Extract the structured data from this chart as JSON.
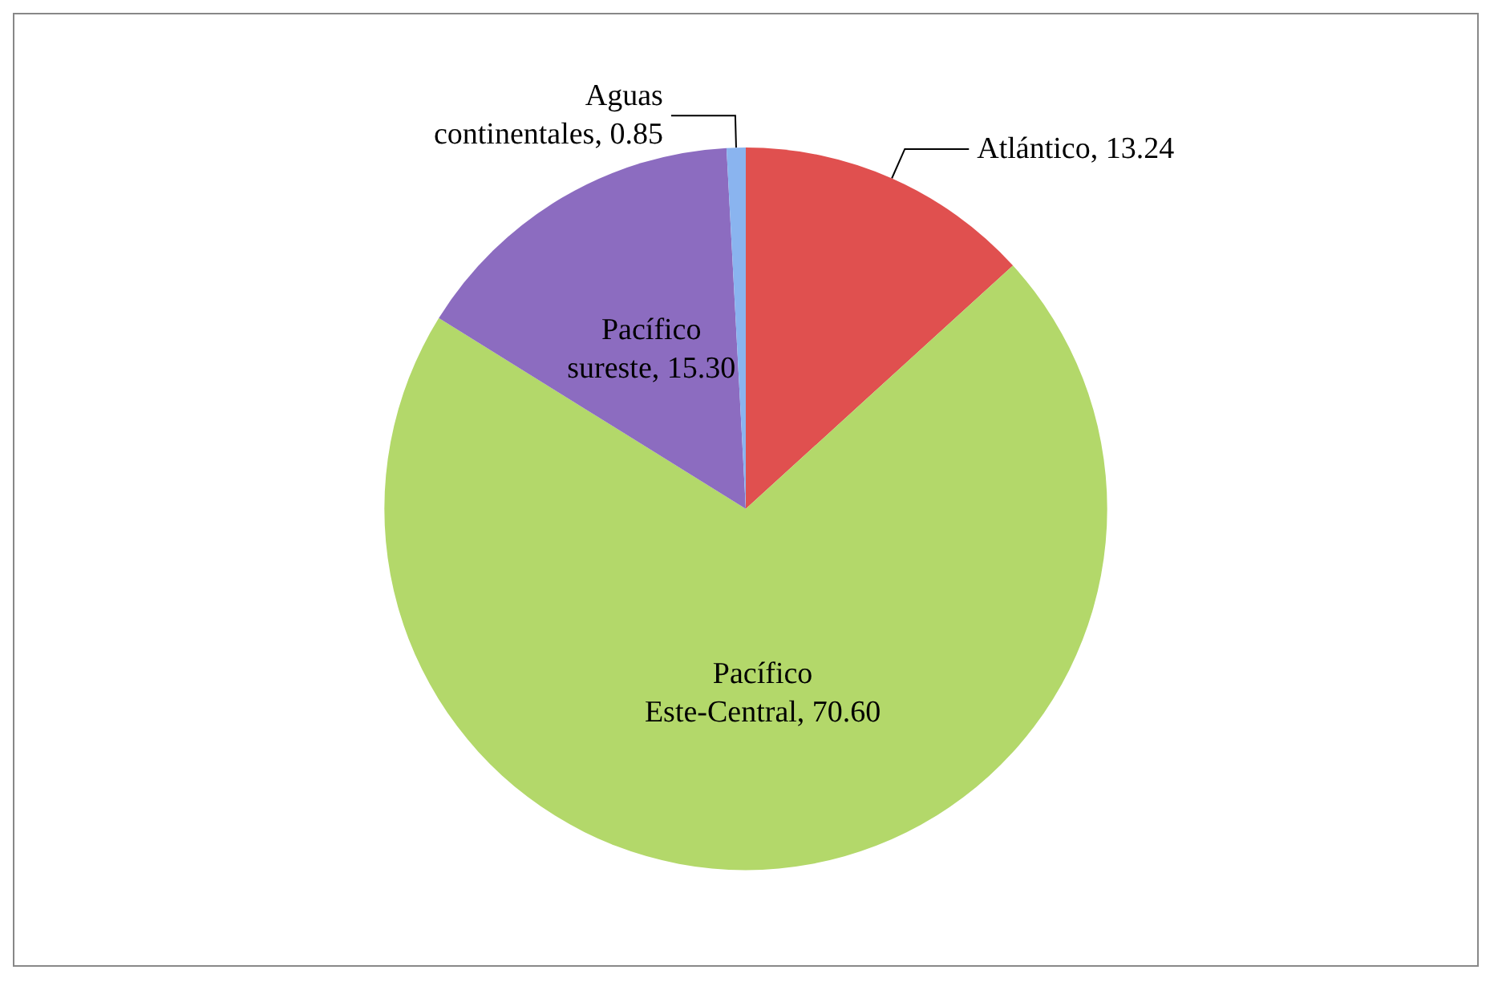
{
  "chart_data": {
    "type": "pie",
    "categories": [
      "Atlántico",
      "Pacífico Este-Central",
      "Pacífico sureste",
      "Aguas continentales"
    ],
    "values": [
      13.24,
      70.6,
      15.3,
      0.85
    ],
    "value_labels": [
      "13.24",
      "70.60",
      "15.30",
      "0.85"
    ],
    "colors": [
      "#e0504f",
      "#b3d86a",
      "#8c6cc0",
      "#8ab4ef"
    ],
    "legend": false
  }
}
